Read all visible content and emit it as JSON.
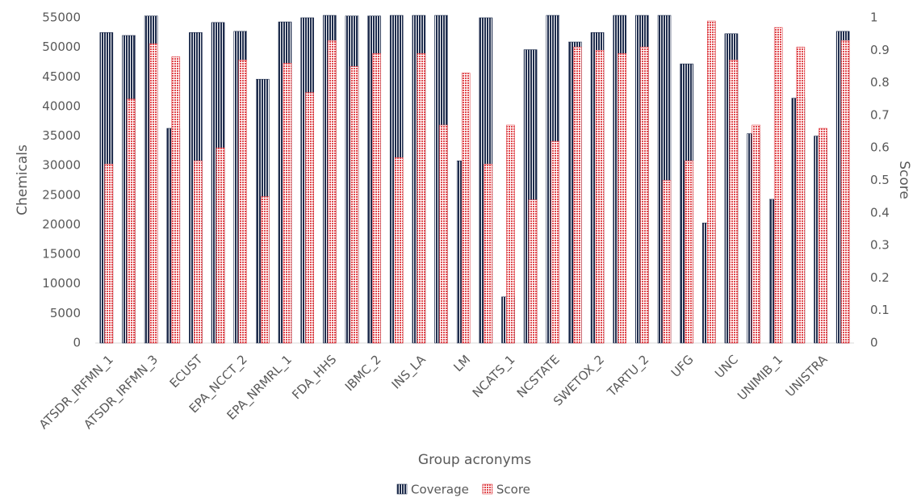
{
  "chart_data": {
    "type": "bar",
    "x_label": "Group acronyms",
    "y_label": "Chemicals",
    "y2_label": "Score",
    "categories": [
      "ATSDR_IRFMN_1",
      null,
      "ATSDR_IRFMN_3",
      null,
      "ECUST",
      null,
      "EPA_NCCT_2",
      null,
      "EPA_NRMRL_1",
      null,
      "FDA_HHS",
      null,
      "IBMC_2",
      null,
      "INS_LA",
      null,
      "LM",
      null,
      "NCATS_1",
      null,
      "NCSTATE",
      null,
      "SWETOX_2",
      null,
      "TARTU_2",
      null,
      "UFG",
      null,
      "UNC",
      null,
      "UNIMIB_1",
      null,
      "UNISTRA",
      null
    ],
    "series": [
      {
        "name": "Coverage",
        "color": "#1f2d4d",
        "values": [
          52500,
          52000,
          55300,
          36300,
          52500,
          54200,
          52700,
          44600,
          54300,
          55000,
          55400,
          55300,
          55300,
          55400,
          55400,
          55400,
          30800,
          55000,
          7800,
          49600,
          55400,
          50900,
          52500,
          55400,
          55400,
          55400,
          47200,
          20300,
          52300,
          35400,
          24300,
          41400,
          35000,
          52700
        ]
      },
      {
        "name": "Score",
        "color": "#e0474c",
        "axis": "y2",
        "values": [
          0.55,
          0.75,
          0.92,
          0.88,
          0.56,
          0.6,
          0.87,
          0.45,
          0.86,
          0.77,
          0.93,
          0.85,
          0.89,
          0.57,
          0.89,
          0.67,
          0.83,
          0.55,
          0.67,
          0.44,
          0.62,
          0.91,
          0.9,
          0.89,
          0.91,
          0.5,
          0.56,
          0.99,
          0.87,
          0.67,
          0.97,
          0.91,
          0.66,
          0.93
        ]
      }
    ],
    "ylim": [
      0,
      55000
    ],
    "yticks": [
      0,
      5000,
      10000,
      15000,
      20000,
      25000,
      30000,
      35000,
      40000,
      45000,
      50000,
      55000
    ],
    "y2lim": [
      0,
      1
    ],
    "y2ticks": [
      0,
      0.1,
      0.2,
      0.3,
      0.4,
      0.5,
      0.6,
      0.7,
      0.8,
      0.9,
      1
    ],
    "legend": "bottom"
  }
}
